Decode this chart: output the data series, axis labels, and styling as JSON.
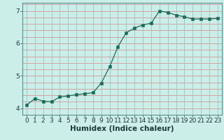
{
  "x": [
    0,
    1,
    2,
    3,
    4,
    5,
    6,
    7,
    8,
    9,
    10,
    11,
    12,
    13,
    14,
    15,
    16,
    17,
    18,
    19,
    20,
    21,
    22,
    23
  ],
  "y": [
    4.1,
    4.3,
    4.22,
    4.2,
    4.35,
    4.38,
    4.42,
    4.45,
    4.48,
    4.78,
    5.28,
    5.9,
    6.33,
    6.47,
    6.57,
    6.62,
    7.0,
    6.95,
    6.87,
    6.82,
    6.75,
    6.75,
    6.75,
    6.77
  ],
  "line_color": "#1a6b5a",
  "marker_color": "#1a6b5a",
  "bg_color": "#cceee8",
  "hgrid_color": "#d4a0a0",
  "vgrid_color": "#a0c8c8",
  "axis_label_color": "#1a3a3a",
  "xlabel": "Humidex (Indice chaleur)",
  "xlim": [
    -0.5,
    23.5
  ],
  "ylim": [
    3.8,
    7.25
  ],
  "yticks": [
    4,
    5,
    6,
    7
  ],
  "xtick_labels": [
    "0",
    "1",
    "2",
    "3",
    "4",
    "5",
    "6",
    "7",
    "8",
    "9",
    "10",
    "11",
    "12",
    "13",
    "14",
    "15",
    "16",
    "17",
    "18",
    "19",
    "20",
    "21",
    "22",
    "23"
  ],
  "xlabel_fontsize": 7.5,
  "tick_fontsize": 6.5,
  "figsize": [
    3.2,
    2.0
  ],
  "dpi": 100
}
